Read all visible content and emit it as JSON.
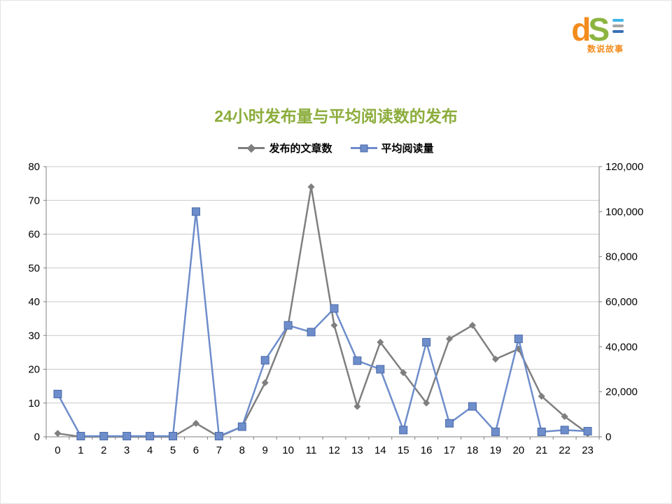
{
  "logo": {
    "d": "d",
    "s": "S",
    "caption": "数说故事",
    "d_color": "#F28C1E",
    "s_color": "#8CB43F",
    "caption_color": "#F28C1E",
    "bar_colors": [
      "#3FB6E8",
      "#A6A6A6",
      "#3B6FB6"
    ]
  },
  "chart_data": {
    "type": "line",
    "title": "24小时发布量与平均阅读数的发布",
    "title_color": "#8CAD3C",
    "categories": [
      "0",
      "1",
      "2",
      "3",
      "4",
      "5",
      "6",
      "7",
      "8",
      "9",
      "10",
      "11",
      "12",
      "13",
      "14",
      "15",
      "16",
      "17",
      "18",
      "19",
      "20",
      "21",
      "22",
      "23"
    ],
    "series": [
      {
        "name": "发布的文章数",
        "axis": "left",
        "color": "#7F7F7F",
        "marker": "diamond",
        "values": [
          1,
          0,
          0,
          0,
          0,
          0,
          4,
          0,
          3,
          16,
          33,
          74,
          33,
          9,
          28,
          19,
          10,
          29,
          33,
          23,
          26,
          12,
          6,
          1
        ]
      },
      {
        "name": "平均阅读量",
        "axis": "right",
        "color": "#6E8DCB",
        "marker": "square",
        "marker_border": "#4A69A8",
        "values": [
          19000,
          300,
          300,
          300,
          300,
          300,
          100000,
          300,
          4500,
          34000,
          49500,
          46500,
          57000,
          33800,
          30000,
          3000,
          42000,
          6000,
          13500,
          2200,
          43500,
          2200,
          3000,
          2500
        ]
      }
    ],
    "left_axis": {
      "min": 0,
      "max": 80,
      "step": 10
    },
    "right_axis": {
      "min": 0,
      "max": 120000,
      "step": 20000
    },
    "grid": true,
    "legend_position": "top",
    "gridline_color": "#C9C9C9",
    "axis_color": "#7F7F7F"
  }
}
